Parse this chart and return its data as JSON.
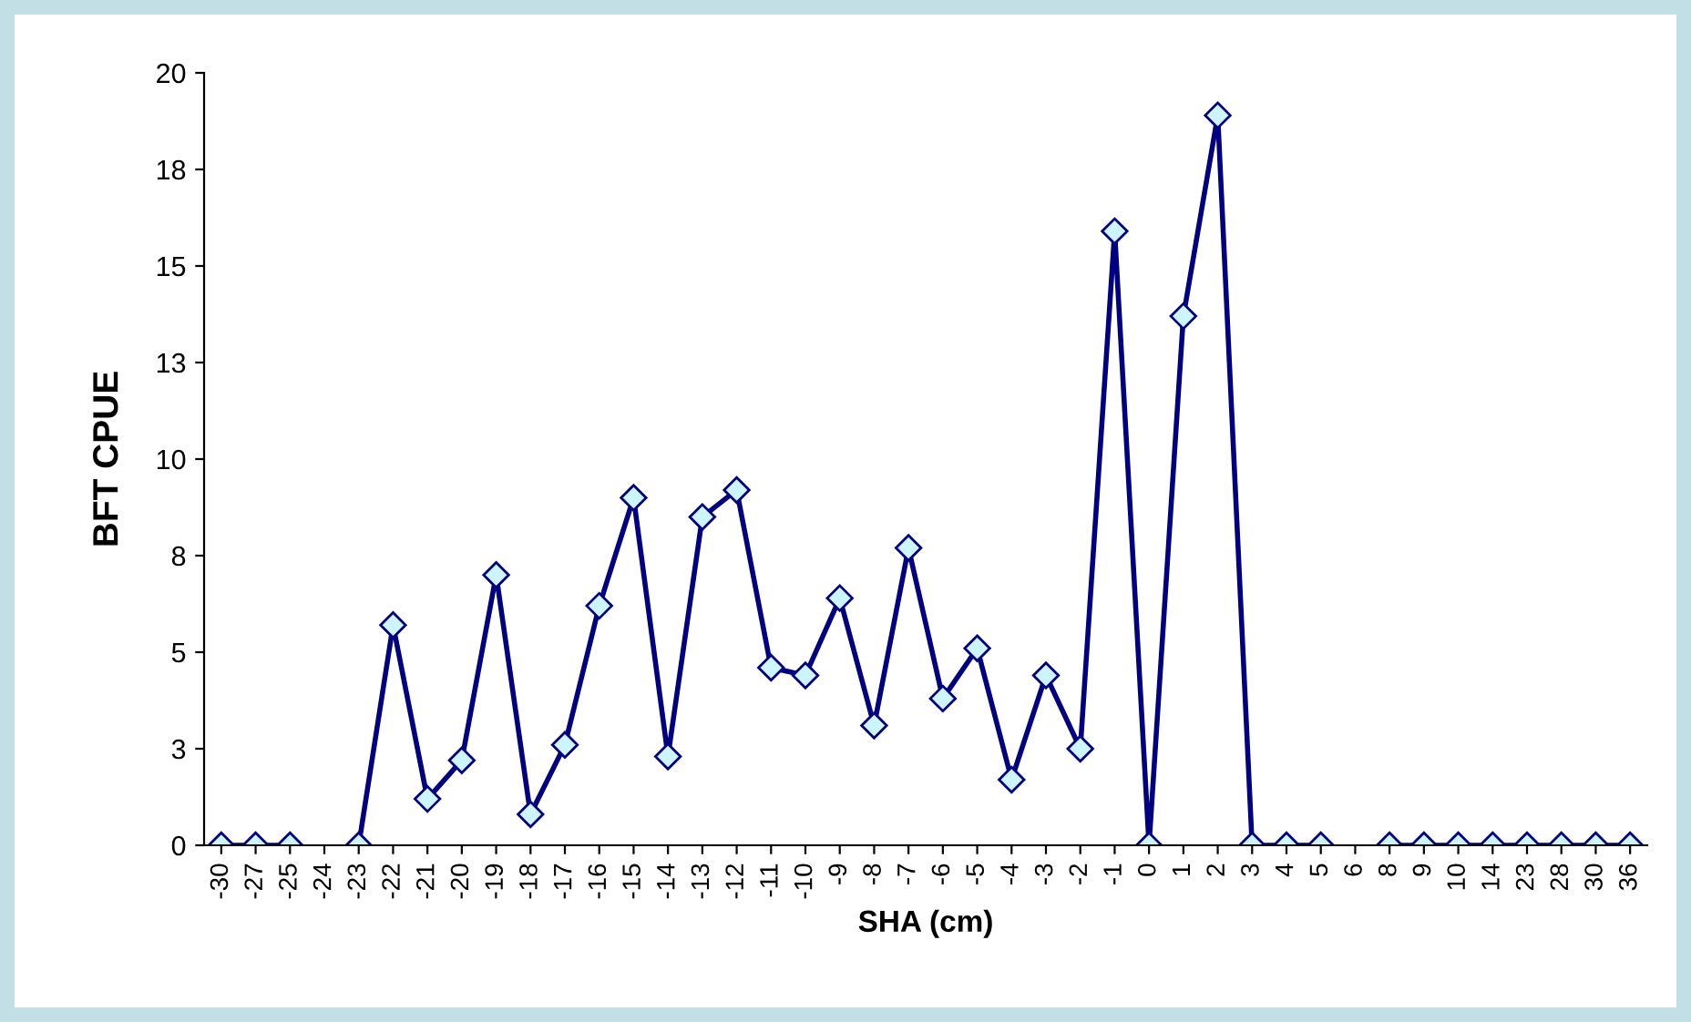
{
  "chart_data": {
    "type": "line",
    "xlabel": "SHA (cm)",
    "ylabel": "BFT CPUE",
    "categories": [
      "-30",
      "-27",
      "-25",
      "-24",
      "-23",
      "-22",
      "-21",
      "-20",
      "-19",
      "-18",
      "-17",
      "-16",
      "-15",
      "-14",
      "-13",
      "-12",
      "-11",
      "-10",
      "-9",
      "-8",
      "-7",
      "-6",
      "-5",
      "-4",
      "-3",
      "-2",
      "-1",
      "0",
      "1",
      "2",
      "3",
      "4",
      "5",
      "6",
      "8",
      "9",
      "10",
      "14",
      "23",
      "28",
      "30",
      "36"
    ],
    "series": [
      {
        "color": "#000080",
        "values": [
          0,
          0,
          0,
          null,
          0,
          5.7,
          1.2,
          2.2,
          7.0,
          0.8,
          2.6,
          6.2,
          9.0,
          2.3,
          8.5,
          9.2,
          4.6,
          4.4,
          6.4,
          3.1,
          7.7,
          3.8,
          5.1,
          1.7,
          4.4,
          2.5,
          15.9,
          0,
          13.7,
          18.9,
          0,
          0,
          0,
          null,
          0,
          0,
          0,
          0,
          0,
          0,
          0,
          0
        ]
      }
    ],
    "ylim": [
      0,
      20
    ],
    "yticks": [
      0,
      {
        "value": 2.5,
        "label": "3"
      },
      5,
      {
        "value": 7.5,
        "label": "8"
      },
      10,
      {
        "value": 12.5,
        "label": "13"
      },
      15,
      {
        "value": 17.5,
        "label": "18"
      },
      20
    ],
    "marker": "diamond",
    "line_style": "solid",
    "grid": false,
    "legend": false
  }
}
